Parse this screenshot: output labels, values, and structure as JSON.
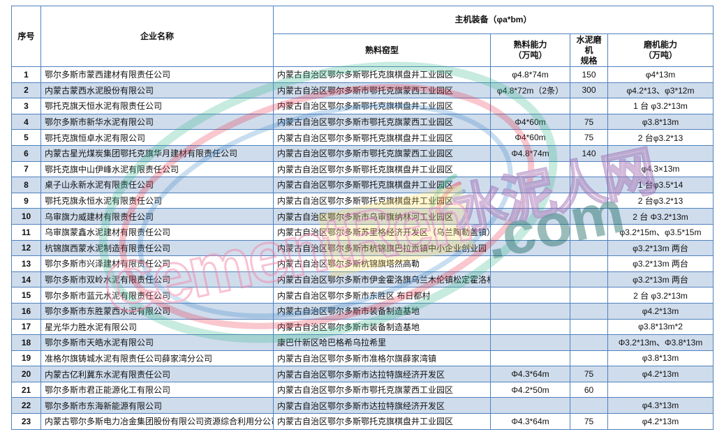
{
  "table": {
    "header": {
      "no": "序号",
      "company": "企业名称",
      "equipment_group": "主机装备（φa*bm）",
      "kiln_type": "熟料窑型",
      "clinker_capacity": "熟料能力\n（万吨）",
      "cement_mill_spec": "水泥磨机\n规格",
      "mill_capacity": "磨机能力\n（万吨）"
    },
    "col_keys": [
      "no",
      "company",
      "kiln_type",
      "clinker_capacity",
      "cement_mill_spec",
      "mill_capacity"
    ],
    "rows": [
      {
        "no": "1",
        "company": "鄂尔多斯市蒙西建材有限责任公司",
        "kiln_type": "内蒙古自治区鄂尔多斯鄂托克旗棋盘井工业园区",
        "clinker_capacity": "φ4.8*74m",
        "cement_mill_spec": "150",
        "mill_capacity": "φ4*13m"
      },
      {
        "no": "2",
        "company": "内蒙古蒙西水泥股份有限公司",
        "kiln_type": "内蒙古自治区鄂尔多斯市鄂托克旗蒙西工业园区",
        "clinker_capacity": "φ4.8*72m（2条）",
        "cement_mill_spec": "300",
        "mill_capacity": "φ4.2*13、φ3*12m"
      },
      {
        "no": "3",
        "company": "鄂托克旗天恒水泥有限责任公司",
        "kiln_type": "内蒙古自治区鄂尔多斯鄂托克旗棋盘井工业园区",
        "clinker_capacity": "",
        "cement_mill_spec": "",
        "mill_capacity": "1 台 φ3.2*13m"
      },
      {
        "no": "4",
        "company": "鄂尔多斯市新华水泥有限公司",
        "kiln_type": "内蒙古自治区鄂尔多斯市鄂托克旗蒙西工业园区",
        "clinker_capacity": "Φ4*60m",
        "cement_mill_spec": "75",
        "mill_capacity": "φ3.8*13m"
      },
      {
        "no": "5",
        "company": "鄂托克旗恒卓水泥有限公司",
        "kiln_type": "内蒙古自治区鄂尔多斯鄂托克旗棋盘井工业园区",
        "clinker_capacity": "Φ4*60m",
        "cement_mill_spec": "75",
        "mill_capacity": "2 台φ3.2*13"
      },
      {
        "no": "6",
        "company": "内蒙古星光煤炭集团鄂托克旗华月建材有限责任公司",
        "kiln_type": "内蒙古自治区鄂尔多斯市鄂托克旗蒙西工业园区",
        "clinker_capacity": "Φ4.8*74m",
        "cement_mill_spec": "140",
        "mill_capacity": ""
      },
      {
        "no": "7",
        "company": "鄂托克旗中山伊峰水泥有限责任公司",
        "kiln_type": "内蒙古自治区鄂尔多斯鄂托克旗棋盘井工业园区",
        "clinker_capacity": "",
        "cement_mill_spec": "",
        "mill_capacity": "φ4.3×13m"
      },
      {
        "no": "8",
        "company": "桌子山永新水泥有限责任公司",
        "kiln_type": "内蒙古自治区鄂尔多斯鄂托克旗棋盘井工业园区",
        "clinker_capacity": "",
        "cement_mill_spec": "",
        "mill_capacity": "1 台φ3.5*14"
      },
      {
        "no": "9",
        "company": "鄂托克旗永恒水泥有限责任公司",
        "kiln_type": "内蒙古自治区鄂尔多斯鄂托克旗棋盘井工业园区",
        "clinker_capacity": "",
        "cement_mill_spec": "",
        "mill_capacity": "2 台φ3.2*13"
      },
      {
        "no": "10",
        "company": "乌审旗力威建材有限责任公司",
        "kiln_type": "内蒙古自治区鄂尔多斯市乌审旗纳林河工业园区",
        "clinker_capacity": "",
        "cement_mill_spec": "",
        "mill_capacity": "2 台 Φ3.2*13m"
      },
      {
        "no": "11",
        "company": "乌审旗蒙鑫水泥建材有限责任公司",
        "kiln_type": "内蒙古自治区鄂尔多斯苏里格经济开发区（乌兰陶勒盖镇）",
        "clinker_capacity": "",
        "cement_mill_spec": "",
        "mill_capacity": "φ3.2*15m、φ3.5*15m"
      },
      {
        "no": "12",
        "company": "杭锦旗西蒙水泥制造有限责任公司",
        "kiln_type": "内蒙古自治区鄂尔多斯市杭锦旗巴拉贡镇中小企业创业园",
        "clinker_capacity": "",
        "cement_mill_spec": "",
        "mill_capacity": "φ3.2*13m 两台"
      },
      {
        "no": "13",
        "company": "鄂尔多斯市兴泽建材有限责任公司",
        "kiln_type": "内蒙古自治区鄂尔多斯杭锦旗塔然高勒",
        "clinker_capacity": "",
        "cement_mill_spec": "",
        "mill_capacity": "φ3.2*13m 两台"
      },
      {
        "no": "14",
        "company": "鄂尔多斯市双岭水泥有限责任公司",
        "kiln_type": "内蒙古自治区鄂尔多斯市伊金霍洛旗乌兰木伦镇松定霍洛村",
        "clinker_capacity": "",
        "cement_mill_spec": "",
        "mill_capacity": "φ3.2*13m 两台"
      },
      {
        "no": "15",
        "company": "鄂尔多斯市蓝元水泥有限责任公司",
        "kiln_type": "内蒙古自治区鄂尔多斯市东胜区 布日都村",
        "clinker_capacity": "",
        "cement_mill_spec": "",
        "mill_capacity": "2 台 φ3.2*13m"
      },
      {
        "no": "16",
        "company": "鄂尔多斯市东胜蒙西水泥有限公司",
        "kiln_type": "内蒙古自治区鄂尔多斯市装备制造基地",
        "clinker_capacity": "",
        "cement_mill_spec": "",
        "mill_capacity": "φ4.2*13m"
      },
      {
        "no": "17",
        "company": "星光华力胜水泥有限公司",
        "kiln_type": "内蒙古自治区鄂尔多斯市装备制造基地",
        "clinker_capacity": "",
        "cement_mill_spec": "",
        "mill_capacity": "φ3.8*13m*2"
      },
      {
        "no": "18",
        "company": "鄂尔多斯市天皓水泥有限公司",
        "kiln_type": "康巴什新区哈巴格希乌拉希里",
        "clinker_capacity": "",
        "cement_mill_spec": "",
        "mill_capacity": "Φ3.2*13m、Φ3.8*13m"
      },
      {
        "no": "19",
        "company": "准格尔旗铸城水泥有限责任公司薛家湾分公司",
        "kiln_type": "内蒙古自治区鄂尔多斯市准格尔旗薛家湾镇",
        "clinker_capacity": "",
        "cement_mill_spec": "",
        "mill_capacity": "φ3.8*13m"
      },
      {
        "no": "20",
        "company": "内蒙古亿利冀东水泥有限责任公司",
        "kiln_type": "内蒙古自治区鄂尔多斯市达拉特旗经济开发区",
        "clinker_capacity": "Φ4.3*64m",
        "cement_mill_spec": "75",
        "mill_capacity": "φ4.2*13m"
      },
      {
        "no": "21",
        "company": "鄂尔多斯市君正能源化工有限公司",
        "kiln_type": "内蒙古自治区鄂尔多斯市鄂托克旗蒙西工业园区",
        "clinker_capacity": "Φ4.2*50m",
        "cement_mill_spec": "60",
        "mill_capacity": ""
      },
      {
        "no": "22",
        "company": "鄂尔多斯市东海新能源有限公司",
        "kiln_type": "内蒙古自治区鄂尔多斯市达拉特旗经济开发区",
        "clinker_capacity": "",
        "cement_mill_spec": "",
        "mill_capacity": "φ4.3*13m"
      },
      {
        "no": "23",
        "company": "内蒙古鄂尔多斯电力冶金集团股份有限公司资源综合利用分公司",
        "kiln_type": "内蒙古自治区鄂尔多斯鄂托克旗棋盘井工业园区",
        "clinker_capacity": "Φ4.3*64m",
        "cement_mill_spec": "75",
        "mill_capacity": "φ4.2*13m"
      }
    ]
  },
  "watermark": {
    "site_name": "水泥人网",
    "brand_word": "CementRen",
    "domain_suffix": ".com",
    "colors": {
      "site_name_stroke": "#8a5fb0",
      "brand_stroke": "#ef7fa3",
      "domain_fill": "#13655f",
      "ring_green": "#33b789",
      "ring_red": "#e8334a",
      "ring_blue": "#3a86c8",
      "highlight_yellow": "#ffd94d"
    }
  },
  "style": {
    "border_color": "#4f81bd",
    "shaded_row_bg": "#cfdcec",
    "page_bg": "#ffffff"
  }
}
